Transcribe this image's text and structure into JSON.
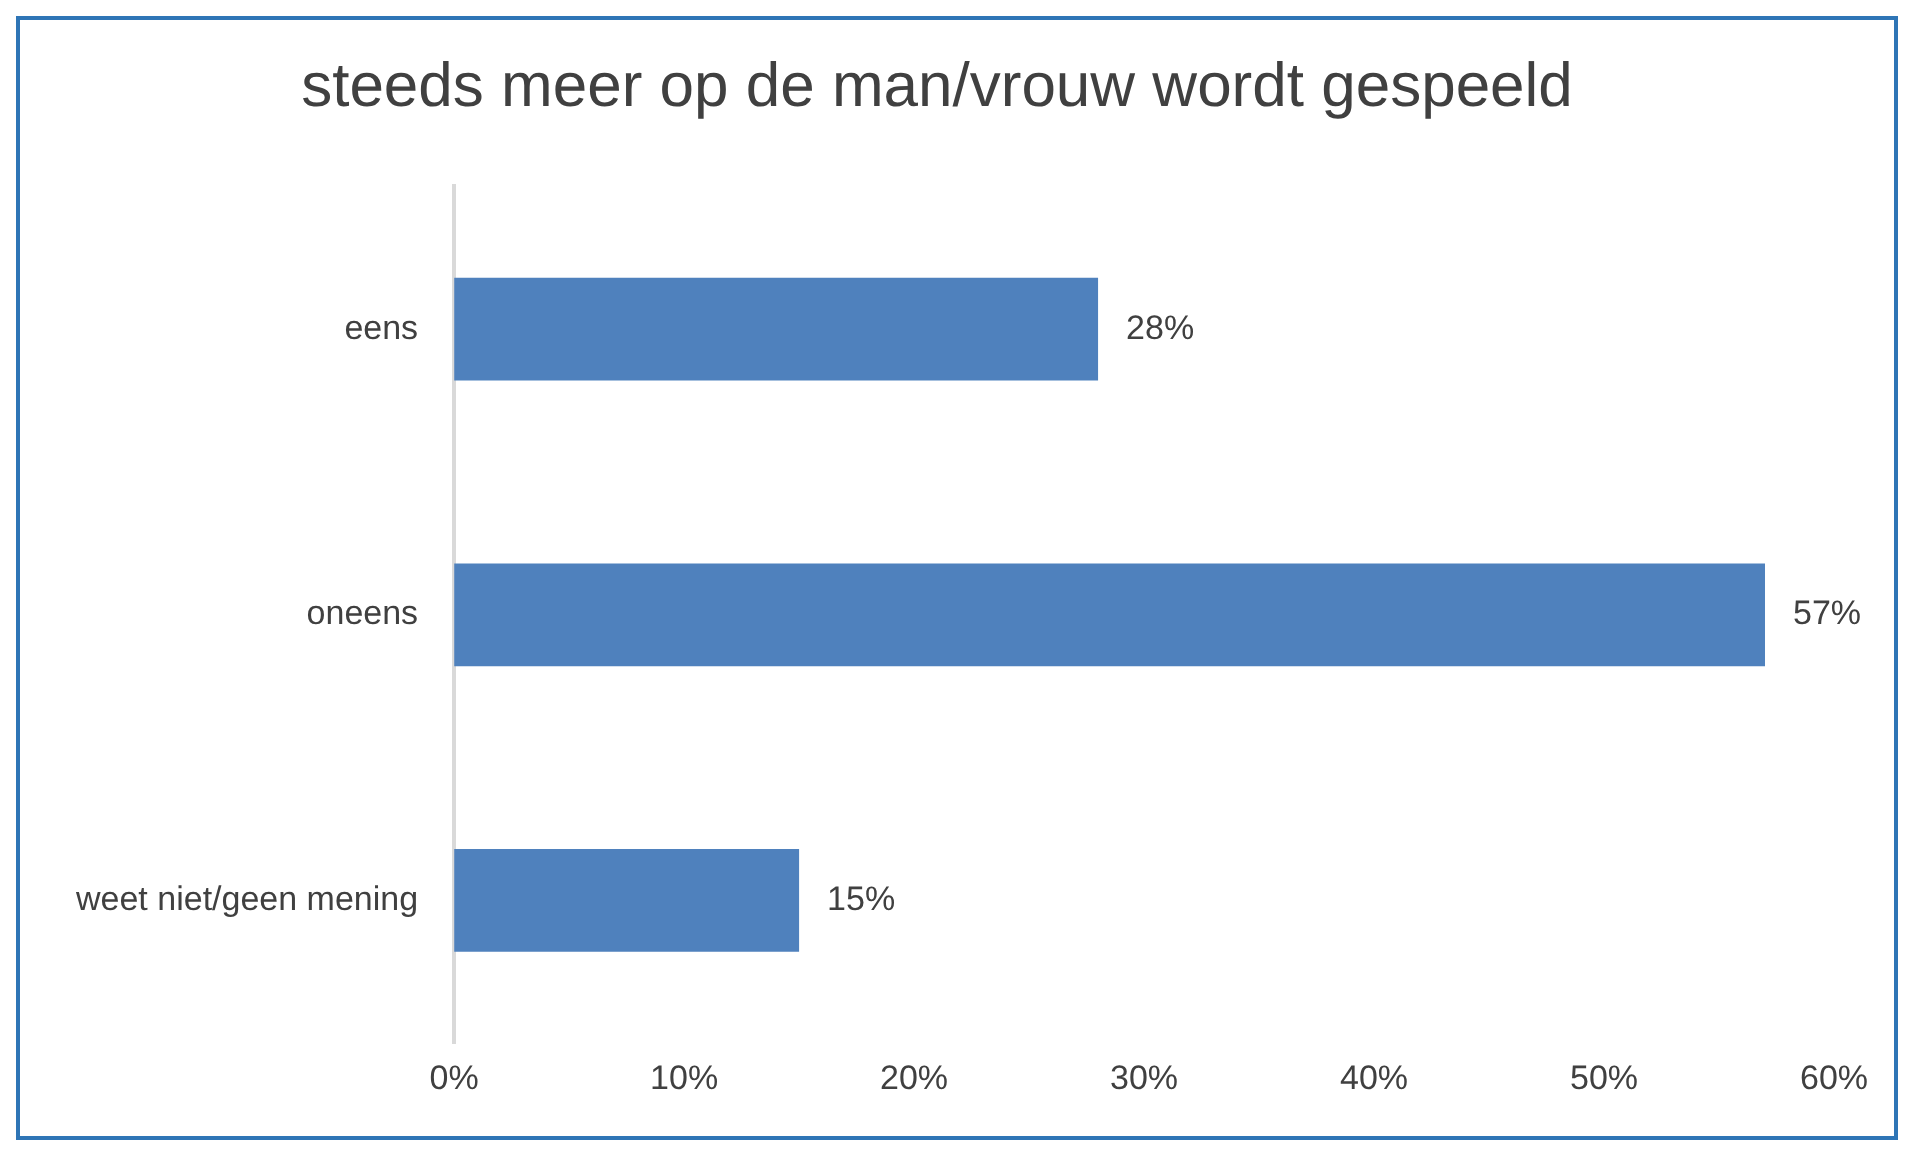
{
  "chart_data": {
    "type": "bar",
    "orientation": "horizontal",
    "title": "steeds meer op de man/vrouw wordt gespeeld",
    "categories": [
      "eens",
      "oneens",
      "weet niet/geen mening"
    ],
    "values": [
      28,
      57,
      15
    ],
    "color": "#4f81bd",
    "value_labels": [
      "28%",
      "57%",
      "15%"
    ],
    "xlim": [
      0,
      60
    ],
    "xticks": [
      {
        "value": 0,
        "label": "0%"
      },
      {
        "value": 10,
        "label": "10%"
      },
      {
        "value": 20,
        "label": "20%"
      },
      {
        "value": 30,
        "label": "30%"
      },
      {
        "value": 40,
        "label": "40%"
      },
      {
        "value": 50,
        "label": "50%"
      },
      {
        "value": 60,
        "label": "60%"
      }
    ],
    "grid": false,
    "legend": false
  }
}
